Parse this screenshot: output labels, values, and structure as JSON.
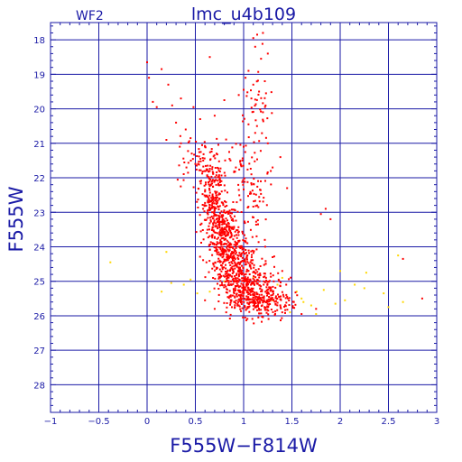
{
  "chart_data": {
    "type": "scatter",
    "title": "lmc_u4b109",
    "subtitle": "WF2",
    "xlabel": "F555W−F814W",
    "ylabel": "F555W",
    "xlim": [
      -1,
      3
    ],
    "ylim": [
      28.8,
      17.5
    ],
    "y_inverted": true,
    "grid": true,
    "x_ticks": [
      -1,
      -0.5,
      0,
      0.5,
      1,
      1.5,
      2,
      2.5,
      3
    ],
    "x_tick_labels": [
      "−1",
      "−0.5",
      "0",
      "0.5",
      "1",
      "1.5",
      "2",
      "2.5",
      "3"
    ],
    "y_ticks": [
      18,
      19,
      20,
      21,
      22,
      23,
      24,
      25,
      26,
      27,
      28
    ],
    "y_tick_labels": [
      "18",
      "19",
      "20",
      "21",
      "22",
      "23",
      "24",
      "25",
      "26",
      "27",
      "28"
    ],
    "series": [
      {
        "color": "#ff0000",
        "points": [
          [
            1.14,
            17.85
          ],
          [
            1.2,
            17.8
          ],
          [
            1.1,
            17.95
          ],
          [
            1.12,
            18.2
          ],
          [
            1.25,
            18.4
          ],
          [
            1.18,
            18.55
          ],
          [
            0.65,
            18.5
          ],
          [
            1.05,
            18.9
          ],
          [
            1.02,
            19.1
          ],
          [
            1.1,
            19.3
          ],
          [
            1.16,
            19.5
          ],
          [
            1.08,
            19.7
          ],
          [
            1.22,
            19.2
          ],
          [
            1.0,
            19.45
          ],
          [
            0.15,
            18.85
          ],
          [
            0.0,
            18.65
          ],
          [
            0.02,
            19.1
          ],
          [
            0.22,
            19.3
          ],
          [
            0.06,
            19.8
          ],
          [
            0.1,
            19.95
          ],
          [
            0.26,
            19.9
          ],
          [
            0.35,
            19.7
          ],
          [
            0.48,
            19.95
          ],
          [
            0.8,
            19.75
          ],
          [
            0.95,
            19.6
          ],
          [
            1.2,
            20.1
          ],
          [
            0.3,
            20.4
          ],
          [
            0.4,
            20.6
          ],
          [
            0.55,
            20.3
          ],
          [
            0.7,
            20.2
          ],
          [
            1.05,
            20.45
          ],
          [
            1.12,
            20.7
          ],
          [
            0.2,
            20.9
          ],
          [
            0.35,
            21.0
          ],
          [
            0.45,
            20.85
          ],
          [
            0.6,
            21.1
          ],
          [
            0.72,
            21.3
          ],
          [
            0.85,
            21.25
          ],
          [
            1.0,
            21.1
          ],
          [
            1.25,
            21.0
          ],
          [
            1.38,
            21.4
          ],
          [
            0.5,
            21.6
          ],
          [
            0.65,
            21.8
          ],
          [
            0.92,
            21.7
          ],
          [
            1.08,
            21.9
          ],
          [
            1.3,
            21.7
          ],
          [
            1.45,
            22.3
          ],
          [
            1.85,
            22.9
          ],
          [
            1.8,
            23.05
          ],
          [
            1.9,
            23.2
          ],
          [
            0.55,
            22.1
          ],
          [
            0.6,
            22.4
          ],
          [
            0.65,
            22.7
          ],
          [
            0.7,
            22.95
          ],
          [
            0.72,
            23.2
          ],
          [
            0.75,
            23.4
          ],
          [
            0.78,
            23.6
          ],
          [
            0.8,
            23.8
          ],
          [
            0.85,
            24.0
          ],
          [
            0.88,
            24.2
          ],
          [
            0.9,
            24.4
          ],
          [
            0.95,
            24.6
          ],
          [
            0.98,
            24.8
          ],
          [
            1.02,
            25.0
          ],
          [
            1.05,
            25.2
          ],
          [
            1.1,
            25.4
          ],
          [
            1.15,
            25.6
          ],
          [
            1.25,
            25.75
          ],
          [
            1.4,
            25.9
          ],
          [
            1.6,
            25.95
          ],
          [
            1.75,
            25.8
          ],
          [
            2.85,
            25.5
          ],
          [
            2.65,
            24.35
          ],
          [
            0.6,
            25.55
          ],
          [
            0.7,
            25.8
          ],
          [
            0.82,
            25.9
          ],
          [
            0.95,
            25.7
          ],
          [
            1.3,
            25.3
          ],
          [
            1.45,
            25.45
          ],
          [
            1.52,
            25.6
          ],
          [
            0.62,
            23.6
          ],
          [
            0.58,
            22.9
          ],
          [
            1.15,
            23.35
          ],
          [
            1.22,
            23.8
          ],
          [
            1.3,
            24.3
          ],
          [
            1.4,
            24.7
          ]
        ],
        "clusters": [
          {
            "cx": 0.68,
            "cy": 22.5,
            "sx": 0.07,
            "sy": 0.55,
            "n": 180
          },
          {
            "cx": 0.78,
            "cy": 23.5,
            "sx": 0.09,
            "sy": 0.5,
            "n": 260
          },
          {
            "cx": 0.9,
            "cy": 24.4,
            "sx": 0.11,
            "sy": 0.45,
            "n": 300
          },
          {
            "cx": 1.05,
            "cy": 25.15,
            "sx": 0.15,
            "sy": 0.38,
            "n": 320
          },
          {
            "cx": 1.22,
            "cy": 25.6,
            "sx": 0.16,
            "sy": 0.22,
            "n": 180
          },
          {
            "cx": 0.55,
            "cy": 21.5,
            "sx": 0.12,
            "sy": 0.35,
            "n": 60
          },
          {
            "cx": 1.05,
            "cy": 21.7,
            "sx": 0.12,
            "sy": 0.5,
            "n": 55
          },
          {
            "cx": 1.15,
            "cy": 19.8,
            "sx": 0.08,
            "sy": 0.55,
            "n": 35
          },
          {
            "cx": 1.1,
            "cy": 22.7,
            "sx": 0.08,
            "sy": 0.35,
            "n": 30
          }
        ]
      },
      {
        "color": "#ffd700",
        "points": [
          [
            -0.38,
            24.45
          ],
          [
            0.2,
            24.15
          ],
          [
            0.25,
            25.05
          ],
          [
            0.38,
            25.1
          ],
          [
            0.52,
            25.35
          ],
          [
            0.45,
            24.95
          ],
          [
            0.95,
            24.6
          ],
          [
            1.1,
            24.9
          ],
          [
            1.35,
            25.1
          ],
          [
            1.55,
            25.3
          ],
          [
            1.6,
            25.5
          ],
          [
            1.62,
            25.6
          ],
          [
            1.7,
            25.7
          ],
          [
            1.83,
            25.25
          ],
          [
            1.95,
            25.65
          ],
          [
            2.0,
            24.7
          ],
          [
            2.05,
            25.55
          ],
          [
            2.15,
            25.1
          ],
          [
            2.25,
            25.2
          ],
          [
            2.27,
            24.75
          ],
          [
            2.45,
            25.35
          ],
          [
            2.6,
            24.25
          ],
          [
            2.65,
            25.6
          ],
          [
            2.5,
            25.75
          ],
          [
            1.48,
            25.9
          ],
          [
            1.3,
            25.55
          ],
          [
            0.8,
            25.0
          ],
          [
            0.65,
            25.3
          ],
          [
            1.4,
            24.9
          ],
          [
            1.75,
            25.95
          ],
          [
            0.15,
            25.3
          ]
        ]
      }
    ]
  }
}
